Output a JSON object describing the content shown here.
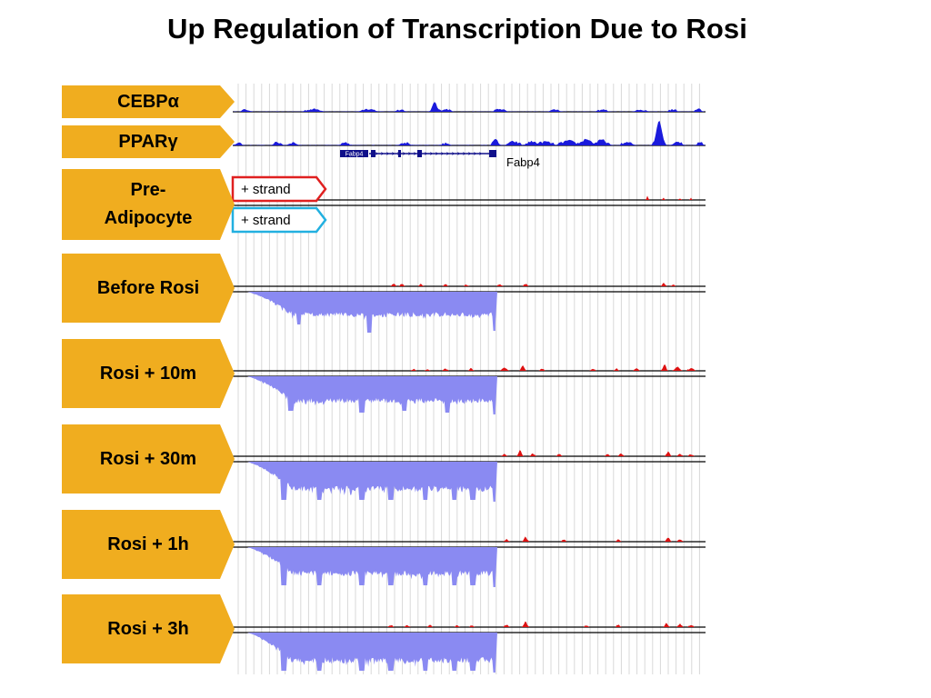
{
  "title": "Up Regulation of Transcription Due to Rosi",
  "gene": {
    "name": "Fabp4",
    "label": "Fabp4",
    "box_label": "Fabp4"
  },
  "strand_tags": [
    {
      "text": "+ strand",
      "color": "#e02020"
    },
    {
      "text": "+ strand",
      "color": "#22b0e0"
    }
  ],
  "tracks": [
    {
      "id": "cebpa",
      "label_prefix": "CEBP",
      "label_symbol": "α",
      "color": "#1a1adc"
    },
    {
      "id": "pparg",
      "label_prefix": "PPAR",
      "label_symbol": "γ",
      "color": "#1a1adc"
    },
    {
      "id": "pre-adipocyte",
      "label": "Pre-Adipocyte",
      "label_lines": [
        "Pre-",
        "Adipocyte"
      ]
    },
    {
      "id": "before-rosi",
      "label": "Before Rosi"
    },
    {
      "id": "rosi-10m",
      "label": "Rosi + 10m"
    },
    {
      "id": "rosi-30m",
      "label": "Rosi + 30m"
    },
    {
      "id": "rosi-1h",
      "label": "Rosi + 1h"
    },
    {
      "id": "rosi-3h",
      "label": "Rosi + 3h"
    }
  ],
  "colors": {
    "label_fill": "#f0ad1f",
    "plus_strand_signal": "#dd1111",
    "minus_strand_signal": "#8a8af2",
    "chip_signal": "#1a1adc",
    "grid": "#d9d9d9"
  }
}
